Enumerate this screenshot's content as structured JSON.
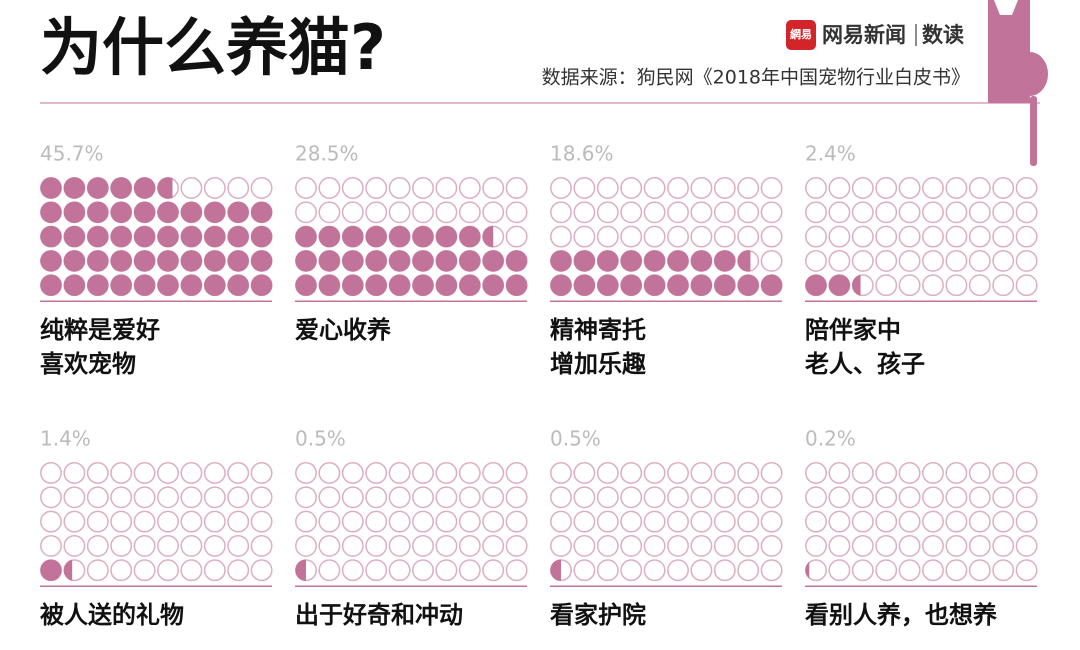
{
  "chart_data": {
    "type": "waffle",
    "title": "为什么养猫?",
    "source": "数据来源：狗民网《2018年中国宠物行业白皮书》",
    "brand_logo": "網易",
    "brand": "网易新闻",
    "brand_section": "数读",
    "color": "#c1739a",
    "empty_color": "#dcaec4",
    "rows": 5,
    "columns": 10,
    "categories": [
      [
        "纯粹是爱好",
        "喜欢宠物"
      ],
      [
        "爱心收养"
      ],
      [
        "精神寄托",
        "增加乐趣"
      ],
      [
        "陪伴家中",
        "老人、孩子"
      ],
      [
        "被人送的礼物"
      ],
      [
        "出于好奇和冲动"
      ],
      [
        "看家护院"
      ],
      [
        "看别人养，也想养"
      ]
    ],
    "values": [
      45.7,
      28.5,
      18.6,
      2.4,
      1.4,
      0.5,
      0.5,
      0.2
    ],
    "value_labels": [
      "45.7%",
      "28.5%",
      "18.6%",
      "2.4%",
      "1.4%",
      "0.5%",
      "0.5%",
      "0.2%"
    ]
  }
}
